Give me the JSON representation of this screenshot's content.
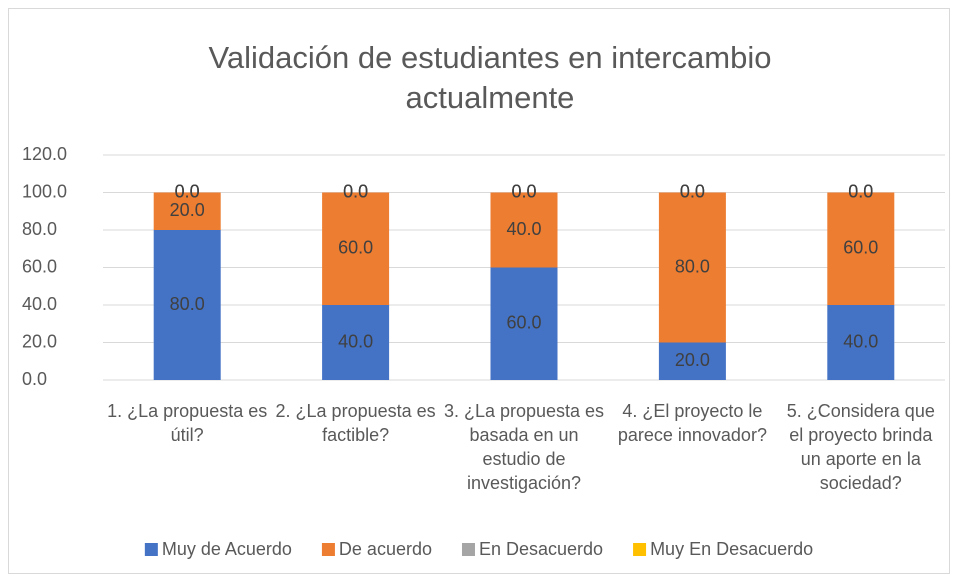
{
  "chart_data": {
    "type": "stacked_bar",
    "title": "Validación de estudiantes en intercambio actualmente",
    "categories": [
      "1. ¿La propuesta es útil?",
      "2. ¿La propuesta es factible?",
      "3. ¿La propuesta es basada en un estudio de investigación?",
      "4. ¿El proyecto le parece innovador?",
      "5. ¿Considera que el proyecto brinda un aporte en la sociedad?"
    ],
    "series": [
      {
        "name": "Muy de Acuerdo",
        "color": "#4472c4",
        "values": [
          80,
          40,
          60,
          20,
          40
        ],
        "value_labels": [
          "80.0",
          "40.0",
          "60.0",
          "20.0",
          "40.0"
        ]
      },
      {
        "name": "De acuerdo",
        "color": "#ed7d31",
        "values": [
          20,
          60,
          40,
          80,
          60
        ],
        "value_labels": [
          "20.0",
          "60.0",
          "40.0",
          "80.0",
          "60.0"
        ]
      },
      {
        "name": "En Desacuerdo",
        "color": "#a5a5a5",
        "values": [
          0,
          0,
          0,
          0,
          0
        ],
        "value_labels": [
          "0.0",
          "0.0",
          "0.0",
          "0.0",
          "0.0"
        ]
      },
      {
        "name": "Muy En Desacuerdo",
        "color": "#ffc000",
        "values": [
          0,
          0,
          0,
          0,
          0
        ],
        "value_labels": [
          "0.0",
          "0.0",
          "0.0",
          "0.0",
          "0.0"
        ]
      }
    ],
    "ylim": [
      0,
      120
    ],
    "yticks": [
      {
        "value": 0,
        "label": "0.0"
      },
      {
        "value": 20,
        "label": "20.0"
      },
      {
        "value": 40,
        "label": "40.0"
      },
      {
        "value": 60,
        "label": "60.0"
      },
      {
        "value": 80,
        "label": "80.0"
      },
      {
        "value": 100,
        "label": "100.0"
      },
      {
        "value": 120,
        "label": "120.0"
      }
    ],
    "grid": true,
    "legend": "bottom"
  }
}
